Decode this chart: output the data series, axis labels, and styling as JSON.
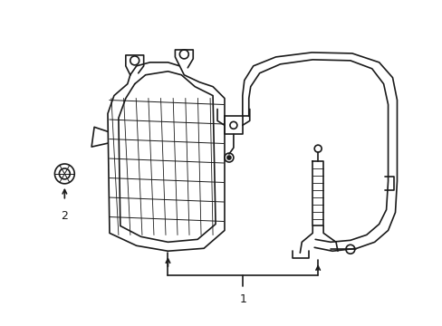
{
  "bg_color": "#ffffff",
  "line_color": "#1a1a1a",
  "lw": 1.2,
  "label1": "1",
  "label2": "2"
}
